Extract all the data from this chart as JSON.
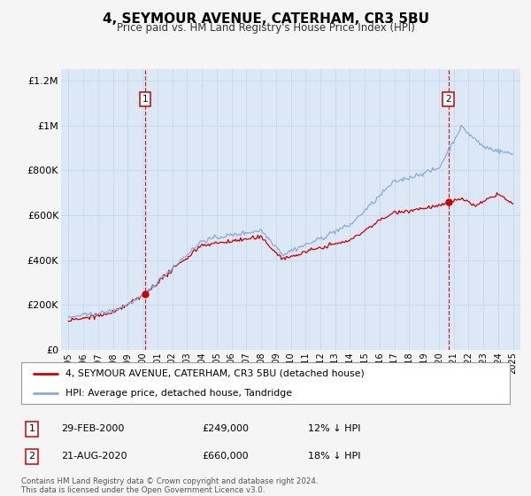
{
  "title": "4, SEYMOUR AVENUE, CATERHAM, CR3 5BU",
  "subtitle": "Price paid vs. HM Land Registry's House Price Index (HPI)",
  "background_color": "#f5f5f5",
  "plot_bg_color": "#dce8f5",
  "red_color": "#cc0000",
  "blue_color": "#88aadd",
  "ylim": [
    0,
    1250000
  ],
  "xlim_start": 1994.5,
  "xlim_end": 2025.5,
  "yticks": [
    0,
    200000,
    400000,
    600000,
    800000,
    1000000,
    1200000
  ],
  "ytick_labels": [
    "£0",
    "£200K",
    "£400K",
    "£600K",
    "£800K",
    "£1M",
    "£1.2M"
  ],
  "xtick_years": [
    1995,
    1996,
    1997,
    1998,
    1999,
    2000,
    2001,
    2002,
    2003,
    2004,
    2005,
    2006,
    2007,
    2008,
    2009,
    2010,
    2011,
    2012,
    2013,
    2014,
    2015,
    2016,
    2017,
    2018,
    2019,
    2020,
    2021,
    2022,
    2023,
    2024,
    2025
  ],
  "transaction1_date": 2000.164,
  "transaction1_price": 249000,
  "transaction1_label": "1",
  "transaction2_date": 2020.64,
  "transaction2_price": 660000,
  "transaction2_label": "2",
  "legend_line1": "4, SEYMOUR AVENUE, CATERHAM, CR3 5BU (detached house)",
  "legend_line2": "HPI: Average price, detached house, Tandridge",
  "table_row1_num": "1",
  "table_row1_date": "29-FEB-2000",
  "table_row1_price": "£249,000",
  "table_row1_hpi": "12% ↓ HPI",
  "table_row2_num": "2",
  "table_row2_date": "21-AUG-2020",
  "table_row2_price": "£660,000",
  "table_row2_hpi": "18% ↓ HPI",
  "footnote1": "Contains HM Land Registry data © Crown copyright and database right 2024.",
  "footnote2": "This data is licensed under the Open Government Licence v3.0."
}
